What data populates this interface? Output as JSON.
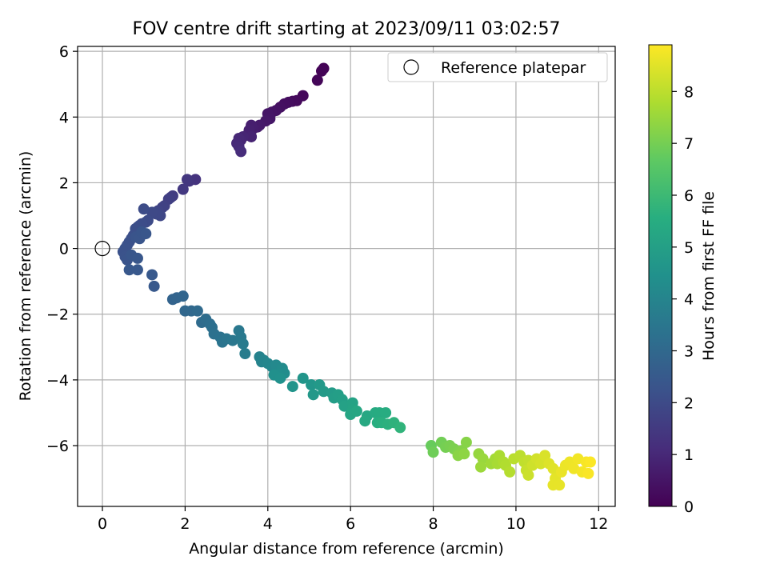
{
  "chart_data": {
    "type": "scatter",
    "title": "FOV centre drift starting at 2023/09/11 03:02:57",
    "xlabel": "Angular distance from reference (arcmin)",
    "ylabel": "Rotation from reference (arcmin)",
    "xlim": [
      -0.6,
      12.4
    ],
    "ylim": [
      -7.85,
      6.15
    ],
    "xticks": [
      0,
      2,
      4,
      6,
      8,
      10,
      12
    ],
    "yticks": [
      -6,
      -4,
      -2,
      0,
      2,
      4,
      6
    ],
    "grid": true,
    "legend": {
      "position": "top-right",
      "entries": [
        "Reference platepar"
      ]
    },
    "reference_point": {
      "x": 0,
      "y": 0
    },
    "colorbar": {
      "label": "Hours from first FF file",
      "range": [
        0,
        8.9
      ],
      "ticks": [
        0,
        1,
        2,
        3,
        4,
        5,
        6,
        7,
        8
      ],
      "colormap": "viridis"
    },
    "series": [
      {
        "points": [
          [
            5.35,
            5.48,
            0.05
          ],
          [
            5.3,
            5.4,
            0.08
          ],
          [
            5.2,
            5.12,
            0.12
          ],
          [
            4.85,
            4.65,
            0.18
          ],
          [
            4.7,
            4.5,
            0.22
          ],
          [
            4.6,
            4.48,
            0.26
          ],
          [
            4.5,
            4.45,
            0.3
          ],
          [
            4.4,
            4.4,
            0.33
          ],
          [
            4.3,
            4.3,
            0.38
          ],
          [
            4.2,
            4.2,
            0.42
          ],
          [
            4.1,
            4.15,
            0.46
          ],
          [
            4.0,
            4.1,
            0.5
          ],
          [
            4.05,
            3.95,
            0.54
          ],
          [
            3.95,
            3.88,
            0.58
          ],
          [
            3.8,
            3.75,
            0.62
          ],
          [
            3.75,
            3.7,
            0.66
          ],
          [
            3.65,
            3.65,
            0.7
          ],
          [
            3.6,
            3.75,
            0.74
          ],
          [
            3.55,
            3.6,
            0.78
          ],
          [
            3.5,
            3.45,
            0.82
          ],
          [
            3.6,
            3.4,
            0.86
          ],
          [
            3.4,
            3.4,
            0.9
          ],
          [
            3.35,
            3.3,
            0.94
          ],
          [
            3.3,
            3.35,
            0.98
          ],
          [
            3.25,
            3.2,
            1.02
          ],
          [
            3.3,
            3.1,
            1.06
          ],
          [
            3.35,
            2.95,
            1.1
          ],
          [
            2.25,
            2.1,
            1.3
          ],
          [
            2.1,
            2.05,
            1.35
          ],
          [
            2.05,
            2.1,
            1.4
          ],
          [
            1.95,
            1.8,
            1.45
          ],
          [
            1.7,
            1.6,
            1.55
          ],
          [
            1.65,
            1.55,
            1.6
          ],
          [
            1.6,
            1.5,
            1.65
          ],
          [
            1.5,
            1.3,
            1.7
          ],
          [
            1.45,
            1.25,
            1.75
          ],
          [
            1.35,
            1.15,
            1.8
          ],
          [
            1.3,
            1.1,
            1.85
          ],
          [
            1.4,
            1.0,
            1.9
          ],
          [
            1.3,
            1.05,
            1.92
          ],
          [
            1.2,
            1.1,
            1.95
          ],
          [
            1.1,
            0.85,
            2.0
          ],
          [
            1.05,
            0.8,
            2.02
          ],
          [
            1.0,
            1.2,
            2.04
          ],
          [
            0.95,
            0.75,
            2.06
          ],
          [
            0.9,
            0.7,
            2.08
          ],
          [
            0.85,
            0.65,
            2.1
          ],
          [
            0.8,
            0.6,
            2.12
          ],
          [
            0.75,
            0.4,
            2.14
          ],
          [
            0.7,
            0.3,
            2.16
          ],
          [
            0.65,
            0.2,
            2.18
          ],
          [
            0.6,
            0.1,
            2.2
          ],
          [
            0.55,
            0.0,
            2.22
          ],
          [
            0.5,
            -0.1,
            2.24
          ],
          [
            0.55,
            -0.25,
            2.26
          ],
          [
            0.6,
            -0.35,
            2.28
          ],
          [
            0.8,
            0.35,
            2.3
          ],
          [
            0.9,
            0.3,
            2.32
          ],
          [
            0.95,
            0.5,
            2.34
          ],
          [
            1.05,
            0.45,
            2.36
          ],
          [
            0.7,
            -0.2,
            2.38
          ],
          [
            0.85,
            -0.3,
            2.4
          ],
          [
            0.65,
            -0.65,
            2.42
          ],
          [
            0.85,
            -0.65,
            2.44
          ],
          [
            1.2,
            -0.8,
            2.46
          ],
          [
            1.25,
            -1.15,
            2.48
          ],
          [
            1.7,
            -1.55,
            2.8
          ],
          [
            1.8,
            -1.5,
            2.85
          ],
          [
            1.95,
            -1.45,
            2.9
          ],
          [
            2.0,
            -1.9,
            2.95
          ],
          [
            2.15,
            -1.9,
            3.0
          ],
          [
            2.3,
            -1.9,
            3.05
          ],
          [
            2.4,
            -2.25,
            3.1
          ],
          [
            2.5,
            -2.15,
            3.15
          ],
          [
            2.6,
            -2.3,
            3.2
          ],
          [
            2.65,
            -2.4,
            3.25
          ],
          [
            2.7,
            -2.6,
            3.3
          ],
          [
            2.85,
            -2.7,
            3.35
          ],
          [
            2.9,
            -2.85,
            3.4
          ],
          [
            3.0,
            -2.75,
            3.45
          ],
          [
            3.15,
            -2.8,
            3.5
          ],
          [
            3.3,
            -2.5,
            3.55
          ],
          [
            3.35,
            -2.7,
            3.6
          ],
          [
            3.4,
            -2.9,
            3.65
          ],
          [
            3.45,
            -3.2,
            3.7
          ],
          [
            3.8,
            -3.3,
            3.9
          ],
          [
            3.85,
            -3.45,
            3.95
          ],
          [
            3.9,
            -3.4,
            4.0
          ],
          [
            4.0,
            -3.5,
            4.05
          ],
          [
            4.1,
            -3.6,
            4.1
          ],
          [
            4.2,
            -3.55,
            4.15
          ],
          [
            4.3,
            -3.7,
            4.2
          ],
          [
            4.35,
            -3.65,
            4.25
          ],
          [
            4.4,
            -3.8,
            4.3
          ],
          [
            4.25,
            -3.85,
            4.35
          ],
          [
            4.15,
            -3.85,
            4.4
          ],
          [
            4.3,
            -3.95,
            4.45
          ],
          [
            4.6,
            -4.2,
            4.55
          ],
          [
            4.85,
            -3.95,
            4.6
          ],
          [
            5.05,
            -4.15,
            4.65
          ],
          [
            5.1,
            -4.45,
            4.7
          ],
          [
            5.25,
            -4.15,
            4.75
          ],
          [
            5.35,
            -4.35,
            4.8
          ],
          [
            5.55,
            -4.4,
            4.85
          ],
          [
            5.6,
            -4.55,
            4.9
          ],
          [
            5.7,
            -4.45,
            4.95
          ],
          [
            5.8,
            -4.6,
            5.0
          ],
          [
            5.85,
            -4.8,
            5.05
          ],
          [
            6.05,
            -4.7,
            5.1
          ],
          [
            6.05,
            -4.9,
            5.15
          ],
          [
            6.0,
            -5.05,
            5.2
          ],
          [
            6.15,
            -4.95,
            5.25
          ],
          [
            6.4,
            -5.1,
            5.3
          ],
          [
            6.35,
            -5.25,
            5.35
          ],
          [
            6.6,
            -5.0,
            5.4
          ],
          [
            6.7,
            -5.0,
            5.45
          ],
          [
            6.85,
            -5.0,
            5.5
          ],
          [
            6.65,
            -5.3,
            5.55
          ],
          [
            6.75,
            -5.3,
            5.6
          ],
          [
            6.9,
            -5.35,
            5.65
          ],
          [
            7.05,
            -5.3,
            5.7
          ],
          [
            7.2,
            -5.45,
            5.75
          ],
          [
            7.95,
            -6.0,
            6.8
          ],
          [
            8.0,
            -6.2,
            6.9
          ],
          [
            8.2,
            -5.9,
            6.95
          ],
          [
            8.3,
            -6.05,
            7.0
          ],
          [
            8.4,
            -6.0,
            7.05
          ],
          [
            8.5,
            -6.1,
            7.1
          ],
          [
            8.6,
            -6.2,
            7.15
          ],
          [
            8.7,
            -6.15,
            7.2
          ],
          [
            8.8,
            -5.9,
            7.25
          ],
          [
            8.6,
            -6.3,
            7.3
          ],
          [
            8.75,
            -6.25,
            7.35
          ],
          [
            9.1,
            -6.25,
            7.45
          ],
          [
            9.2,
            -6.4,
            7.5
          ],
          [
            9.15,
            -6.65,
            7.55
          ],
          [
            9.4,
            -6.55,
            7.6
          ],
          [
            9.5,
            -6.4,
            7.65
          ],
          [
            9.55,
            -6.55,
            7.7
          ],
          [
            9.6,
            -6.3,
            7.75
          ],
          [
            9.7,
            -6.5,
            7.8
          ],
          [
            9.75,
            -6.6,
            7.85
          ],
          [
            9.85,
            -6.8,
            7.9
          ],
          [
            9.95,
            -6.4,
            7.95
          ],
          [
            10.1,
            -6.3,
            8.0
          ],
          [
            10.2,
            -6.5,
            8.05
          ],
          [
            10.3,
            -6.45,
            8.1
          ],
          [
            10.25,
            -6.75,
            8.15
          ],
          [
            10.3,
            -6.9,
            8.2
          ],
          [
            10.4,
            -6.6,
            8.25
          ],
          [
            10.5,
            -6.4,
            8.3
          ],
          [
            10.6,
            -6.55,
            8.35
          ],
          [
            10.7,
            -6.3,
            8.4
          ],
          [
            10.8,
            -6.55,
            8.45
          ],
          [
            10.9,
            -6.7,
            8.5
          ],
          [
            10.95,
            -7.0,
            8.55
          ],
          [
            10.9,
            -7.2,
            8.58
          ],
          [
            11.05,
            -7.2,
            8.6
          ],
          [
            11.1,
            -6.8,
            8.63
          ],
          [
            11.2,
            -6.6,
            8.66
          ],
          [
            11.3,
            -6.5,
            8.69
          ],
          [
            11.4,
            -6.7,
            8.72
          ],
          [
            11.5,
            -6.4,
            8.75
          ],
          [
            11.6,
            -6.8,
            8.78
          ],
          [
            11.7,
            -6.5,
            8.81
          ],
          [
            11.75,
            -6.85,
            8.84
          ],
          [
            11.8,
            -6.5,
            8.87
          ]
        ]
      }
    ]
  }
}
